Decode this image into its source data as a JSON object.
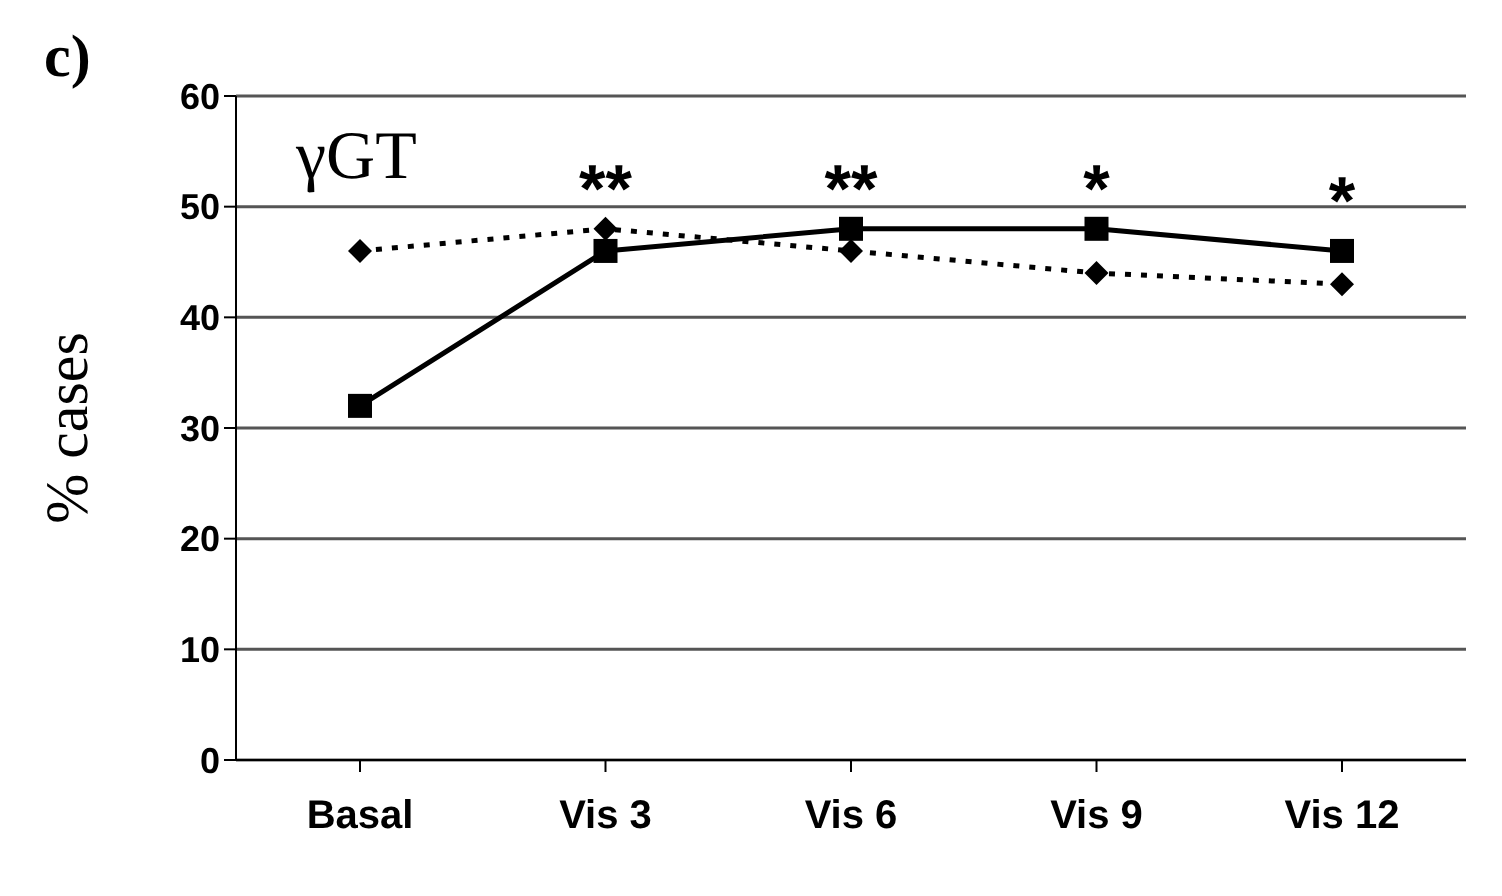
{
  "chart_data": {
    "type": "line",
    "title": "c)",
    "ylabel": "% cases",
    "categories": [
      "Basal",
      "Vis 3",
      "Vis 6",
      "Vis 9",
      "Vis 12"
    ],
    "series": [
      {
        "color": "#000000",
        "values": [
          32,
          46,
          48,
          48,
          46
        ],
        "marker": "square",
        "line_style": "solid"
      },
      {
        "color": "#000000",
        "values": [
          46,
          48,
          46,
          44,
          43
        ],
        "marker": "diamond",
        "line_style": "dotted"
      }
    ],
    "ylim": [
      0,
      60
    ],
    "yticks": [
      0,
      10,
      20,
      30,
      40,
      50,
      60
    ],
    "grid": "y",
    "legend": false,
    "annotations": [
      "γGT",
      "**",
      "**",
      "*",
      "*"
    ]
  }
}
